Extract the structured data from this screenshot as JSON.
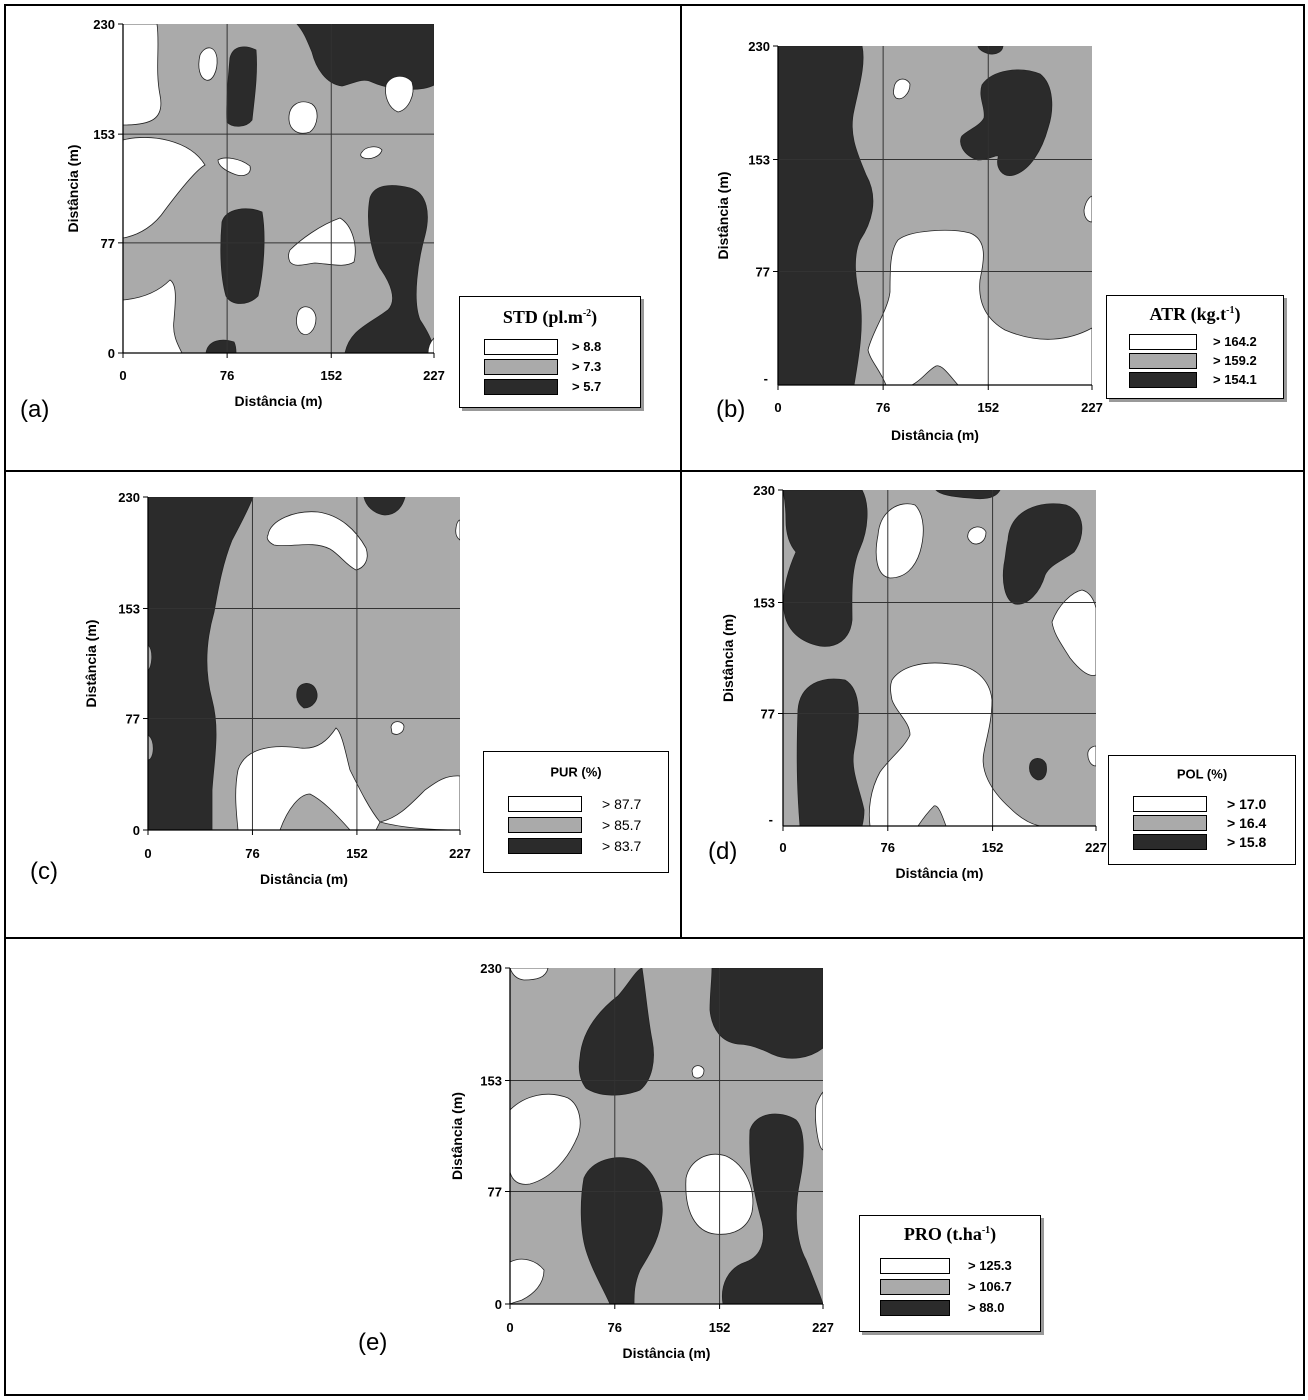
{
  "palette": {
    "white": "#ffffff",
    "gray": "#aaaaaa",
    "black": "#2b2b2b"
  },
  "chart_data": [
    {
      "id": "a",
      "type": "heatmap",
      "panel_label": "(a)",
      "xlabel": "Distância (m)",
      "ylabel": "Distância (m)",
      "x_ticks": [
        "0",
        "76",
        "152",
        "227"
      ],
      "y_ticks": [
        "0",
        "77",
        "153",
        "230"
      ],
      "xlim": [
        0,
        227
      ],
      "ylim": [
        0,
        230
      ],
      "legend": {
        "title_main": "STD (pl.m",
        "title_sup": "-2",
        "title_end": ")",
        "classes": [
          "> 8.8",
          "> 7.3",
          "> 5.7"
        ]
      }
    },
    {
      "id": "b",
      "type": "heatmap",
      "panel_label": "(b)",
      "xlabel": "Distância (m)",
      "ylabel": "Distância (m)",
      "x_ticks": [
        "0",
        "76",
        "152",
        "227"
      ],
      "y_ticks": [
        "77",
        "153",
        "230"
      ],
      "xlim": [
        0,
        227
      ],
      "ylim": [
        0,
        230
      ],
      "legend": {
        "title_main": "ATR (kg.t",
        "title_sup": "-1",
        "title_end": ")",
        "classes": [
          "> 164.2",
          "> 159.2",
          "> 154.1"
        ]
      }
    },
    {
      "id": "c",
      "type": "heatmap",
      "panel_label": "(c)",
      "xlabel": "Distância (m)",
      "ylabel": "Distância (m)",
      "x_ticks": [
        "0",
        "76",
        "152",
        "227"
      ],
      "y_ticks": [
        "0",
        "77",
        "153",
        "230"
      ],
      "xlim": [
        0,
        227
      ],
      "ylim": [
        0,
        230
      ],
      "legend": {
        "title_main": "PUR (%)",
        "title_sup": "",
        "title_end": "",
        "classes": [
          "> 87.7",
          "> 85.7",
          "> 83.7"
        ]
      }
    },
    {
      "id": "d",
      "type": "heatmap",
      "panel_label": "(d)",
      "xlabel": "Distância (m)",
      "ylabel": "Distância (m)",
      "x_ticks": [
        "0",
        "76",
        "152",
        "227"
      ],
      "y_ticks": [
        "77",
        "153",
        "230"
      ],
      "xlim": [
        0,
        227
      ],
      "ylim": [
        0,
        230
      ],
      "legend": {
        "title_main": "POL (%)",
        "title_sup": "",
        "title_end": "",
        "classes": [
          "> 17.0",
          "> 16.4",
          "> 15.8"
        ]
      }
    },
    {
      "id": "e",
      "type": "heatmap",
      "panel_label": "(e)",
      "xlabel": "Distância (m)",
      "ylabel": "Distância (m)",
      "x_ticks": [
        "0",
        "76",
        "152",
        "227"
      ],
      "y_ticks": [
        "0",
        "77",
        "153",
        "230"
      ],
      "xlim": [
        0,
        227
      ],
      "ylim": [
        0,
        230
      ],
      "legend": {
        "title_main": "PRO (t.ha",
        "title_sup": "-1",
        "title_end": ")",
        "classes": [
          "> 125.3",
          "> 106.7",
          "> 88.0"
        ]
      }
    }
  ]
}
